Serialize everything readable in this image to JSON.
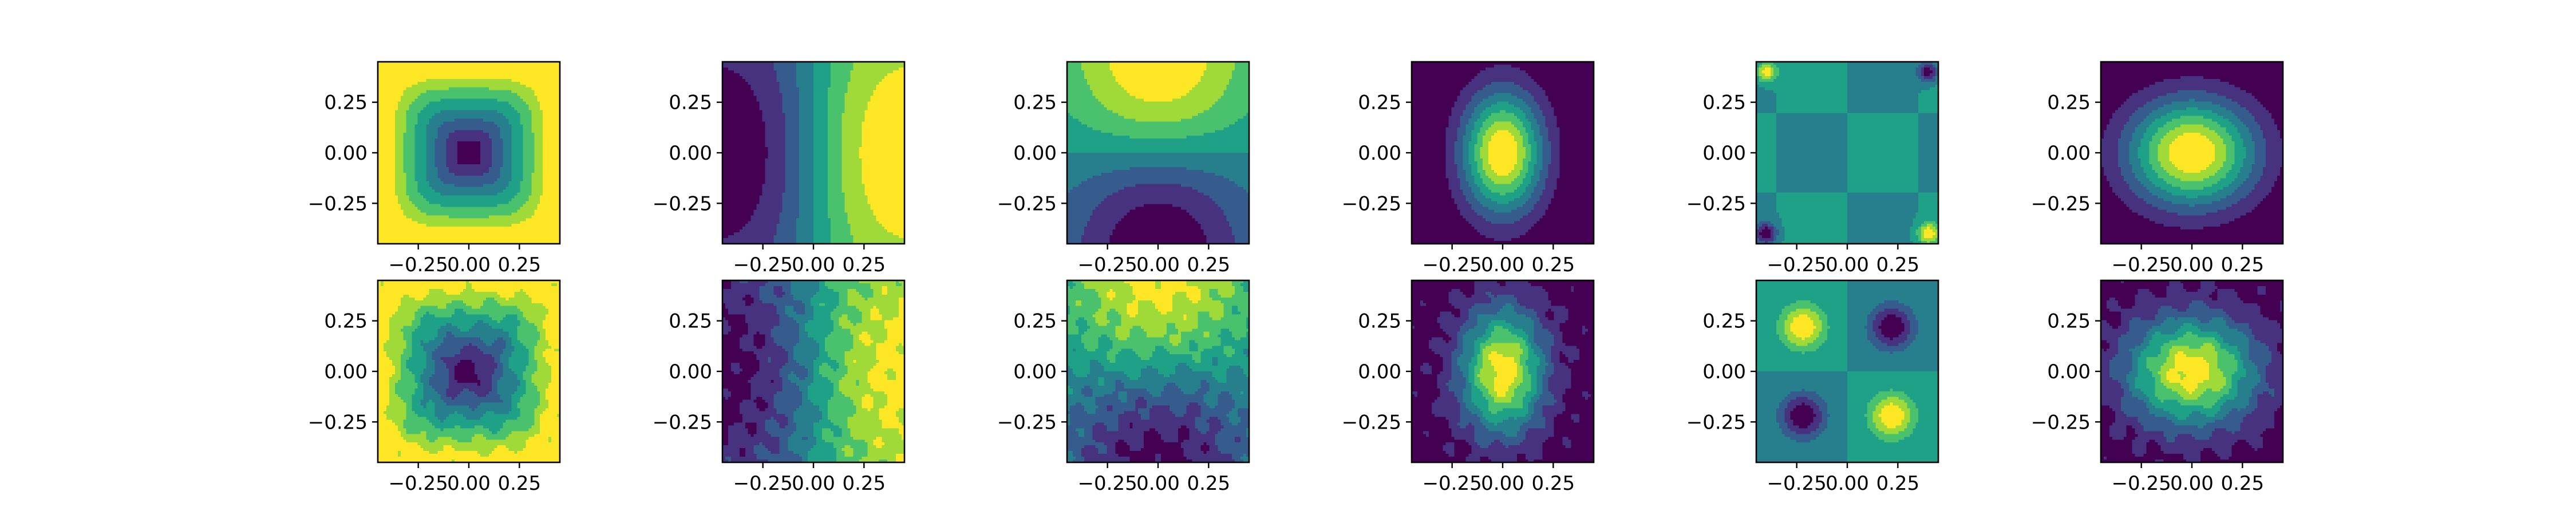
{
  "chart_data": {
    "type": "heatmap",
    "colormap": "viridis",
    "colors": {
      "low": "#440154",
      "mid": "#21918c",
      "high": "#fde725",
      "axis": "#000000",
      "background": "#ffffff"
    },
    "grid": false,
    "xlim": [
      -0.45,
      0.45
    ],
    "ylim": [
      -0.45,
      0.45
    ],
    "xticks": [
      -0.25,
      0.0,
      0.25
    ],
    "yticks": [
      -0.25,
      0.0,
      0.25
    ],
    "xtick_labels": [
      "−0.25",
      "0.00",
      "0.25"
    ],
    "ytick_labels": [
      "0.25",
      "0.00",
      "−0.25"
    ],
    "panels": [
      {
        "row": 0,
        "col": 0,
        "pattern": "bowl",
        "noise": false
      },
      {
        "row": 0,
        "col": 1,
        "pattern": "x-dipole",
        "noise": false
      },
      {
        "row": 0,
        "col": 2,
        "pattern": "y-dipole",
        "noise": false
      },
      {
        "row": 0,
        "col": 3,
        "pattern": "dome",
        "noise": false
      },
      {
        "row": 0,
        "col": 4,
        "pattern": "corner-spots",
        "noise": false
      },
      {
        "row": 0,
        "col": 5,
        "pattern": "wide-dome",
        "noise": false
      },
      {
        "row": 1,
        "col": 0,
        "pattern": "bowl",
        "noise": true
      },
      {
        "row": 1,
        "col": 1,
        "pattern": "x-dipole",
        "noise": true
      },
      {
        "row": 1,
        "col": 2,
        "pattern": "y-dipole",
        "noise": true
      },
      {
        "row": 1,
        "col": 3,
        "pattern": "dome",
        "noise": true
      },
      {
        "row": 1,
        "col": 4,
        "pattern": "quadrupole",
        "noise": false
      },
      {
        "row": 1,
        "col": 5,
        "pattern": "wide-dome",
        "noise": true
      }
    ]
  }
}
